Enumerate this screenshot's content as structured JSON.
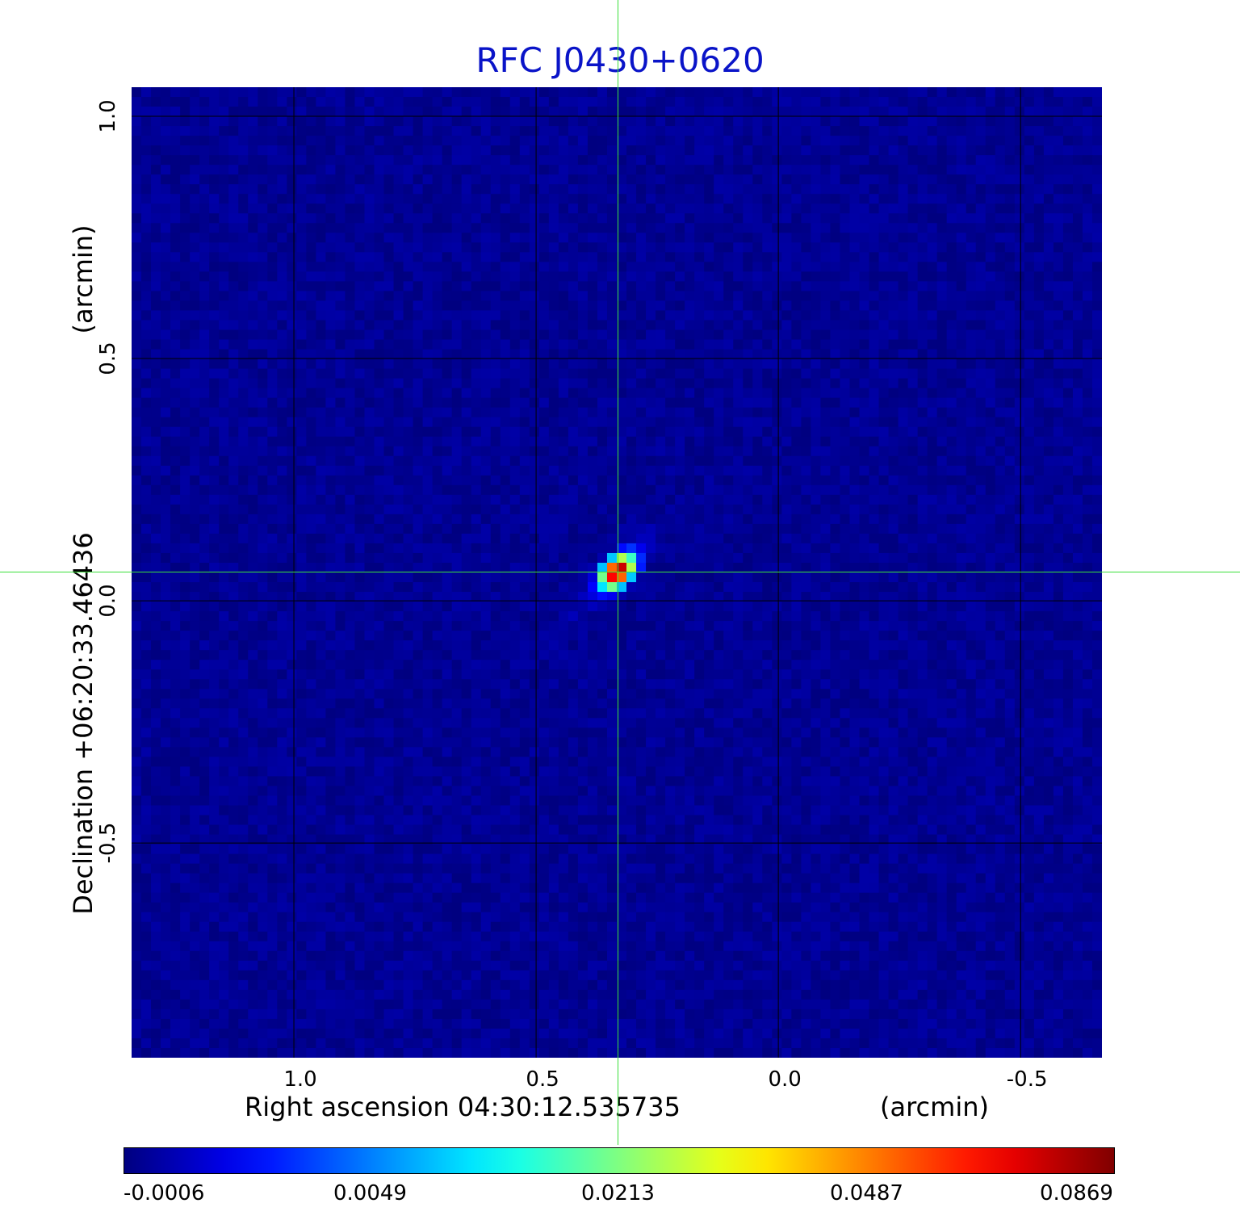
{
  "chart_data": {
    "type": "heatmap",
    "title": "RFC J0430+0620",
    "xlabel": "Right ascension  04:30:12.535735",
    "xunit": "(arcmin)",
    "ylabel": "Declination  +06:20:33.46436",
    "yunit": "(arcmin)",
    "x_ticks": [
      "1.0",
      "0.5",
      "0.0",
      "-0.5"
    ],
    "x_tick_values": [
      1.0,
      0.5,
      0.0,
      -0.5
    ],
    "y_ticks": [
      "1.0",
      "0.5",
      "0.0",
      "-0.5"
    ],
    "y_tick_values": [
      1.0,
      0.5,
      0.0,
      -0.5
    ],
    "xlim": [
      1.335,
      -0.668
    ],
    "ylim": [
      -0.943,
      1.06
    ],
    "grid": true,
    "colormap": "jet",
    "colorbar_ticks": [
      "-0.0006",
      "0.0049",
      "0.0213",
      "0.0487",
      "0.0869"
    ],
    "colorbar_range": [
      -0.0006,
      0.0869
    ],
    "background_level": -0.0002,
    "source": {
      "x": 0.332,
      "y": 0.06,
      "peak": 0.0869,
      "note": "compact source, slightly elongated toward upper-right / lower-left"
    },
    "crosshair": {
      "x": 0.332,
      "y": 0.06
    }
  },
  "colors": {
    "title": "#0a14c8",
    "crosshair": "#3be03b",
    "grid": "#000000"
  }
}
